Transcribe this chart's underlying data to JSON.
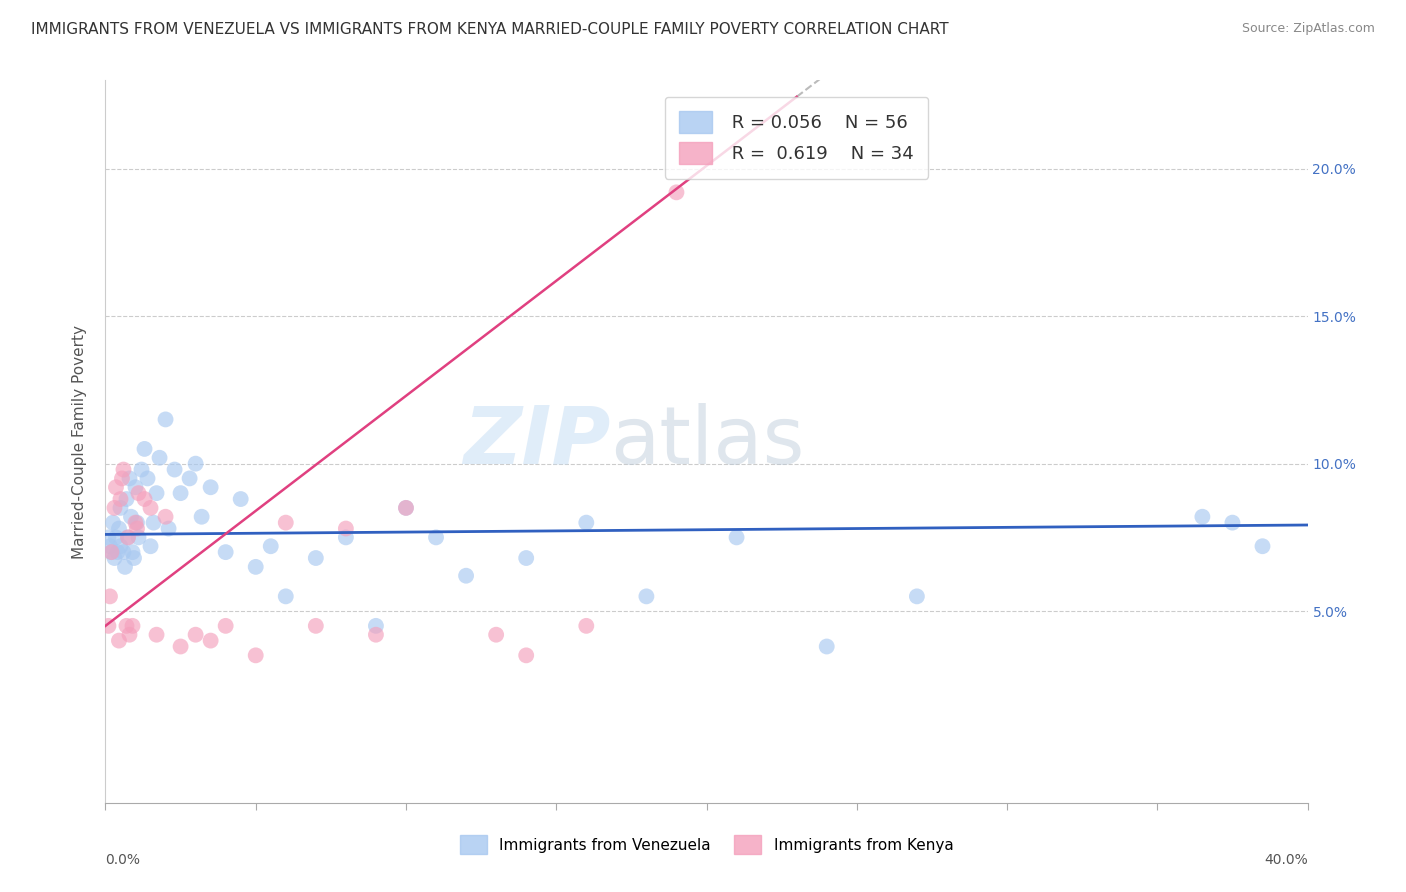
{
  "title": "IMMIGRANTS FROM VENEZUELA VS IMMIGRANTS FROM KENYA MARRIED-COUPLE FAMILY POVERTY CORRELATION CHART",
  "source": "Source: ZipAtlas.com",
  "ylabel": "Married-Couple Family Poverty",
  "xlim": [
    0.0,
    40.0
  ],
  "ylim": [
    -1.5,
    23.0
  ],
  "watermark_zip": "ZIP",
  "watermark_atlas": "atlas",
  "legend_blue_r": "0.056",
  "legend_blue_n": "56",
  "legend_pink_r": "0.619",
  "legend_pink_n": "34",
  "blue_color": "#a8c8f0",
  "pink_color": "#f4a0bc",
  "blue_line_color": "#3060c0",
  "pink_line_color": "#e04080",
  "gray_dash_color": "#bbbbbb",
  "venezuela_x": [
    0.1,
    0.15,
    0.2,
    0.25,
    0.3,
    0.35,
    0.4,
    0.45,
    0.5,
    0.5,
    0.6,
    0.65,
    0.7,
    0.75,
    0.8,
    0.85,
    0.9,
    0.95,
    1.0,
    1.05,
    1.1,
    1.2,
    1.3,
    1.4,
    1.5,
    1.6,
    1.7,
    1.8,
    2.0,
    2.1,
    2.3,
    2.5,
    2.8,
    3.0,
    3.2,
    3.5,
    4.0,
    4.5,
    5.0,
    5.5,
    6.0,
    7.0,
    8.0,
    9.0,
    10.0,
    11.0,
    12.0,
    14.0,
    16.0,
    18.0,
    21.0,
    24.0,
    27.0,
    36.5,
    37.5,
    38.5
  ],
  "venezuela_y": [
    7.5,
    7.2,
    7.0,
    8.0,
    6.8,
    7.5,
    7.0,
    7.8,
    8.5,
    7.2,
    7.0,
    6.5,
    8.8,
    7.5,
    9.5,
    8.2,
    7.0,
    6.8,
    9.2,
    8.0,
    7.5,
    9.8,
    10.5,
    9.5,
    7.2,
    8.0,
    9.0,
    10.2,
    11.5,
    7.8,
    9.8,
    9.0,
    9.5,
    10.0,
    8.2,
    9.2,
    7.0,
    8.8,
    6.5,
    7.2,
    5.5,
    6.8,
    7.5,
    4.5,
    8.5,
    7.5,
    6.2,
    6.8,
    8.0,
    5.5,
    7.5,
    3.8,
    5.5,
    8.2,
    8.0,
    7.2
  ],
  "kenya_x": [
    0.1,
    0.15,
    0.2,
    0.3,
    0.35,
    0.45,
    0.5,
    0.55,
    0.6,
    0.7,
    0.75,
    0.8,
    0.9,
    1.0,
    1.05,
    1.1,
    1.3,
    1.5,
    1.7,
    2.0,
    2.5,
    3.0,
    3.5,
    4.0,
    5.0,
    6.0,
    7.0,
    8.0,
    9.0,
    10.0,
    13.0,
    14.0,
    16.0,
    19.0
  ],
  "kenya_y": [
    4.5,
    5.5,
    7.0,
    8.5,
    9.2,
    4.0,
    8.8,
    9.5,
    9.8,
    4.5,
    7.5,
    4.2,
    4.5,
    8.0,
    7.8,
    9.0,
    8.8,
    8.5,
    4.2,
    8.2,
    3.8,
    4.2,
    4.0,
    4.5,
    3.5,
    8.0,
    4.5,
    7.8,
    4.2,
    8.5,
    4.2,
    3.5,
    4.5,
    19.2
  ],
  "pink_line_intercept": 4.5,
  "pink_line_slope": 0.78,
  "blue_line_intercept": 7.6,
  "blue_line_slope": 0.008
}
